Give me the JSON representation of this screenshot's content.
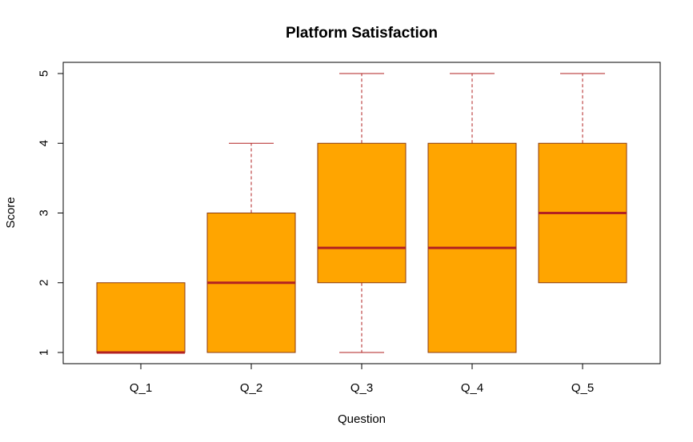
{
  "chart_data": {
    "type": "boxplot",
    "title": "Platform Satisfaction",
    "xlabel": "Question",
    "ylabel": "Score",
    "categories": [
      "Q_1",
      "Q_2",
      "Q_3",
      "Q_4",
      "Q_5"
    ],
    "y_ticks": [
      "1",
      "2",
      "3",
      "4",
      "5"
    ],
    "ylim": [
      1,
      5
    ],
    "grid": false,
    "boxes": [
      {
        "category": "Q_1",
        "whisker_low": 1,
        "q1": 1,
        "median": 1,
        "q3": 2,
        "whisker_high": 2
      },
      {
        "category": "Q_2",
        "whisker_low": 1,
        "q1": 1,
        "median": 2,
        "q3": 3,
        "whisker_high": 4
      },
      {
        "category": "Q_3",
        "whisker_low": 1,
        "q1": 2,
        "median": 2.5,
        "q3": 4,
        "whisker_high": 5
      },
      {
        "category": "Q_4",
        "whisker_low": 1,
        "q1": 1,
        "median": 2.5,
        "q3": 4,
        "whisker_high": 5
      },
      {
        "category": "Q_5",
        "whisker_low": 2,
        "q1": 2,
        "median": 3,
        "q3": 4,
        "whisker_high": 5
      }
    ],
    "colors": {
      "box_fill": "#FFA500",
      "box_border": "#8B3A0F",
      "median": "#B22222",
      "whisker": "#B22222"
    }
  }
}
